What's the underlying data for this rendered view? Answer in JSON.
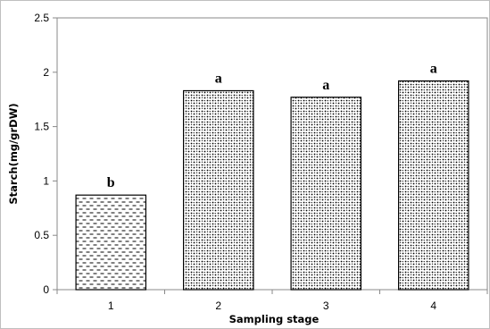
{
  "chart_data": {
    "type": "bar",
    "categories": [
      "1",
      "2",
      "3",
      "4"
    ],
    "values": [
      0.87,
      1.83,
      1.77,
      1.92
    ],
    "data_labels": [
      "b",
      "a",
      "a",
      "a"
    ],
    "patterns": [
      "dashes",
      "dots",
      "dots",
      "dots"
    ],
    "title": "",
    "xlabel": "Sampling stage",
    "ylabel": "Starch(mg/grDW)",
    "ylim": [
      0,
      2.5
    ],
    "yticks": [
      "0",
      "0.5",
      "1",
      "1.5",
      "2",
      "2.5"
    ],
    "grid": false,
    "legend": "none",
    "colors": {
      "bar_fill": "#ffffff",
      "bar_stroke": "#000000",
      "axis": "#888888"
    }
  }
}
